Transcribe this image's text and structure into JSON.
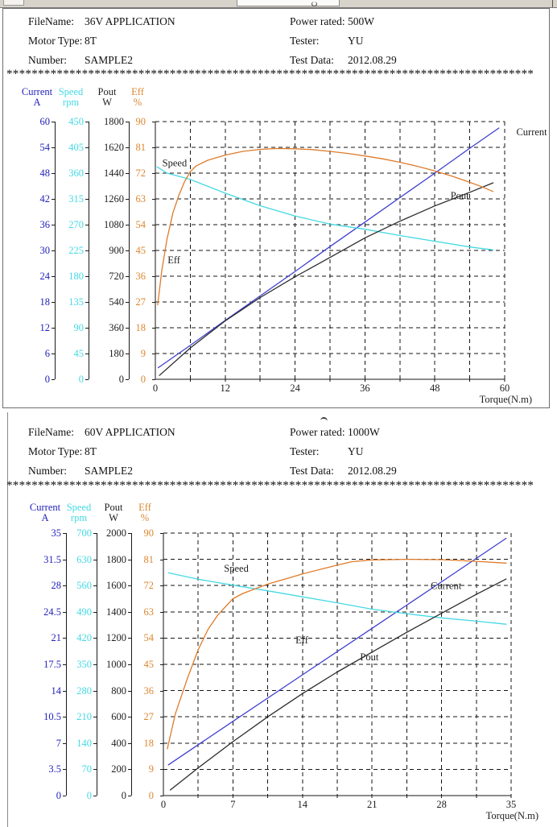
{
  "panels": [
    {
      "header": {
        "rows": [
          {
            "label1": "FileName:",
            "value1": "36V APPLICATION",
            "label2": "Power rated:",
            "value2": "500W"
          },
          {
            "label1": "Motor Type:",
            "value1": "8T",
            "label2": "Tester:",
            "value2": "YU"
          },
          {
            "label1": "Number:",
            "value1": "SAMPLE2",
            "label2": "Test Data:",
            "value2": "2012.08.29"
          }
        ]
      },
      "separator": "************************************************************************************************************************"
    },
    {
      "header": {
        "rows": [
          {
            "label1": "FileName:",
            "value1": "60V APPLICATION",
            "label2": "Power rated:",
            "value2": "1000W"
          },
          {
            "label1": "Motor Type:",
            "value1": "8T",
            "label2": "Tester:",
            "value2": "YU"
          },
          {
            "label1": "Number:",
            "value1": "SAMPLE2",
            "label2": "Test Data:",
            "value2": "2012.08.29"
          }
        ]
      },
      "separator": "************************************************************************************************************************"
    }
  ],
  "chart_data": [
    {
      "type": "line",
      "title": "36V APPLICATION motor test curves",
      "x_axis": {
        "label": "Torque(N.m)",
        "max": 60,
        "ticks": [
          0,
          12,
          24,
          36,
          48,
          60
        ],
        "grid_step": 6
      },
      "grid": "dashed",
      "y_axes": [
        {
          "name": "Current",
          "unit": "A",
          "color": "#2222bb",
          "ticks": [
            60,
            54,
            48,
            42,
            36,
            30,
            24,
            18,
            12,
            6,
            0
          ]
        },
        {
          "name": "Speed",
          "unit": "rpm",
          "color": "#45d9e3",
          "ticks": [
            450,
            405,
            360,
            315,
            270,
            225,
            180,
            135,
            90,
            45,
            0
          ]
        },
        {
          "name": "Pout",
          "unit": "W",
          "color": "#1e1e1e",
          "ticks": [
            1800,
            1620,
            1440,
            1260,
            1080,
            900,
            720,
            540,
            360,
            180,
            0
          ]
        },
        {
          "name": "Eff",
          "unit": "%",
          "color": "#dd8630",
          "ticks": [
            90,
            81,
            72,
            63,
            54,
            45,
            36,
            27,
            18,
            9,
            0
          ]
        }
      ],
      "series": [
        {
          "name": "Current",
          "axis": 0,
          "color": "#3f3fd0",
          "label_color": "#2222bb",
          "label_at": [
            62,
            58.7
          ],
          "points": [
            [
              0.5,
              2.7
            ],
            [
              6,
              7.9
            ],
            [
              12,
              13.7
            ],
            [
              18,
              19.4
            ],
            [
              24,
              25.1
            ],
            [
              30,
              30.9
            ],
            [
              36,
              36.6
            ],
            [
              42,
              42.3
            ],
            [
              48,
              48.0
            ],
            [
              54,
              53.8
            ],
            [
              59,
              58.5
            ]
          ]
        },
        {
          "name": "Speed",
          "axis": 1,
          "color": "#45d9e3",
          "label_color": "#4cdce8",
          "label_at": [
            1.2,
            386
          ],
          "points": [
            [
              0.3,
              371
            ],
            [
              2,
              360
            ],
            [
              6,
              349
            ],
            [
              12,
              325
            ],
            [
              18,
              303
            ],
            [
              24,
              285
            ],
            [
              30,
              271
            ],
            [
              36,
              262
            ],
            [
              42,
              251
            ],
            [
              48,
              241
            ],
            [
              54,
              231
            ],
            [
              58,
              226
            ]
          ]
        },
        {
          "name": "Pout",
          "axis": 2,
          "color": "#2b2b2b",
          "label_color": "#1e1e1e",
          "label_at": [
            50.7,
            1316
          ],
          "points": [
            [
              0.7,
              27
            ],
            [
              6,
              219
            ],
            [
              12,
              408
            ],
            [
              18,
              571
            ],
            [
              24,
              716
            ],
            [
              30,
              851
            ],
            [
              36,
              988
            ],
            [
              42,
              1104
            ],
            [
              48,
              1211
            ],
            [
              54,
              1306
            ],
            [
              58,
              1372
            ]
          ]
        },
        {
          "name": "Eff",
          "axis": 3,
          "color": "#de7b2a",
          "label_color": "#de7b2a",
          "label_at": [
            2.1,
            43.3
          ],
          "points": [
            [
              0.4,
              26
            ],
            [
              1.1,
              38
            ],
            [
              2,
              49
            ],
            [
              3,
              58
            ],
            [
              4,
              64
            ],
            [
              5,
              69
            ],
            [
              6,
              72.5
            ],
            [
              7,
              74.5
            ],
            [
              9,
              76.5
            ],
            [
              12,
              78.3
            ],
            [
              15,
              79.6
            ],
            [
              18,
              80.3
            ],
            [
              21,
              80.6
            ],
            [
              24,
              80.5
            ],
            [
              27,
              80.2
            ],
            [
              30,
              79.6
            ],
            [
              33,
              78.9
            ],
            [
              36,
              78.0
            ],
            [
              39,
              77.0
            ],
            [
              42,
              75.8
            ],
            [
              45,
              74.4
            ],
            [
              48,
              72.8
            ],
            [
              51,
              70.9
            ],
            [
              54,
              68.8
            ],
            [
              56,
              67.3
            ],
            [
              58,
              65.6
            ]
          ]
        }
      ]
    },
    {
      "type": "line",
      "title": "60V APPLICATION motor test curves",
      "x_axis": {
        "label": "Torque(N.m)",
        "max": 35,
        "ticks": [
          0,
          7,
          14,
          21,
          28,
          35
        ],
        "grid_step": 3.5
      },
      "grid": "dashed",
      "y_axes": [
        {
          "name": "Current",
          "unit": "A",
          "color": "#2222bb",
          "ticks": [
            35,
            31.5,
            28,
            24.5,
            21,
            17.5,
            14,
            10.5,
            7,
            3.5,
            0
          ]
        },
        {
          "name": "Speed",
          "unit": "rpm",
          "color": "#45d9e3",
          "ticks": [
            700,
            630,
            560,
            490,
            420,
            350,
            280,
            210,
            140,
            70,
            0
          ]
        },
        {
          "name": "Pout",
          "unit": "W",
          "color": "#1e1e1e",
          "ticks": [
            2000,
            1800,
            1600,
            1400,
            1200,
            1000,
            800,
            600,
            400,
            200,
            0
          ]
        },
        {
          "name": "Eff",
          "unit": "%",
          "color": "#dd8630",
          "ticks": [
            90,
            81,
            72,
            63,
            54,
            45,
            36,
            27,
            18,
            9,
            0
          ]
        }
      ],
      "series": [
        {
          "name": "Current",
          "axis": 0,
          "color": "#3f3fd0",
          "label_color": "#2222bb",
          "label_at": [
            26.9,
            28.6
          ],
          "points": [
            [
              0.5,
              4.1
            ],
            [
              7,
              9.9
            ],
            [
              14,
              16.1
            ],
            [
              21,
              22.3
            ],
            [
              28,
              28.5
            ],
            [
              34.5,
              34.3
            ]
          ]
        },
        {
          "name": "Speed",
          "axis": 1,
          "color": "#45d9e3",
          "label_color": "#4cdce8",
          "label_at": [
            6.1,
            618
          ],
          "points": [
            [
              0.5,
              594
            ],
            [
              3.5,
              577
            ],
            [
              7,
              561
            ],
            [
              10.5,
              546
            ],
            [
              14,
              530
            ],
            [
              17.5,
              514
            ],
            [
              21,
              497
            ],
            [
              24.5,
              485
            ],
            [
              28,
              474
            ],
            [
              31.5,
              465
            ],
            [
              34.5,
              457
            ]
          ]
        },
        {
          "name": "Pout",
          "axis": 2,
          "color": "#2b2b2b",
          "label_color": "#1e1e1e",
          "label_at": [
            19.8,
            1092
          ],
          "points": [
            [
              0.7,
              43
            ],
            [
              3.5,
              211
            ],
            [
              7,
              411
            ],
            [
              10.5,
              600
            ],
            [
              14,
              777
            ],
            [
              17.5,
              942
            ],
            [
              21,
              1093
            ],
            [
              24.5,
              1244
            ],
            [
              28,
              1389
            ],
            [
              31.5,
              1533
            ],
            [
              34.5,
              1650
            ]
          ]
        },
        {
          "name": "Eff",
          "axis": 3,
          "color": "#de7b2a",
          "label_color": "#de7b2a",
          "label_at": [
            13.3,
            54.9
          ],
          "points": [
            [
              0.4,
              16
            ],
            [
              1.2,
              28
            ],
            [
              2.4,
              40
            ],
            [
              3.5,
              50
            ],
            [
              4.5,
              57
            ],
            [
              5.5,
              62
            ],
            [
              7,
              67.5
            ],
            [
              8,
              69.3
            ],
            [
              10.5,
              72.5
            ],
            [
              14,
              76
            ],
            [
              17.5,
              79
            ],
            [
              19,
              80.2
            ],
            [
              21,
              80.8
            ],
            [
              24.5,
              81
            ],
            [
              28,
              80.9
            ],
            [
              31.5,
              80.3
            ],
            [
              34.5,
              79.7
            ]
          ]
        }
      ]
    }
  ]
}
